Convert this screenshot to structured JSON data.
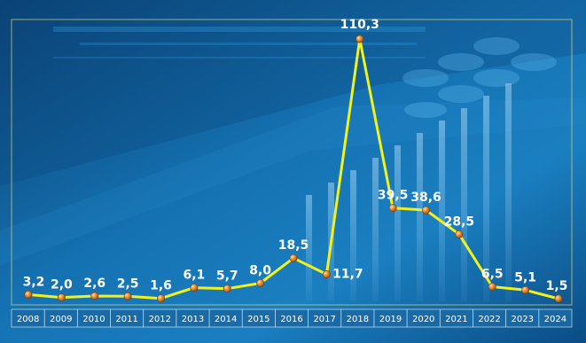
{
  "chart_data": {
    "type": "line",
    "title": "",
    "xlabel": "",
    "ylabel": "",
    "categories": [
      "2008",
      "2009",
      "2010",
      "2011",
      "2012",
      "2013",
      "2014",
      "2015",
      "2016",
      "2017",
      "2018",
      "2019",
      "2020",
      "2021",
      "2022",
      "2023",
      "2024"
    ],
    "values": [
      3.2,
      2.0,
      2.6,
      2.5,
      1.6,
      6.1,
      5.7,
      8.0,
      18.5,
      11.7,
      110.3,
      39.5,
      38.6,
      28.5,
      6.5,
      5.1,
      1.5
    ],
    "labels": [
      "3,2",
      "2,0",
      "2,6",
      "2,5",
      "1,6",
      "6,1",
      "5,7",
      "8,0",
      "18,5",
      "11,7",
      "110,3",
      "39,5",
      "38,6",
      "28,5",
      "6,5",
      "5,1",
      "1,5"
    ],
    "ylim": [
      0,
      110.3
    ],
    "grid": false,
    "legend": "none",
    "colors": {
      "line": "#f2f21a",
      "marker": "#d9822b",
      "text": "#ffffff",
      "frame": "#d8d878"
    }
  }
}
